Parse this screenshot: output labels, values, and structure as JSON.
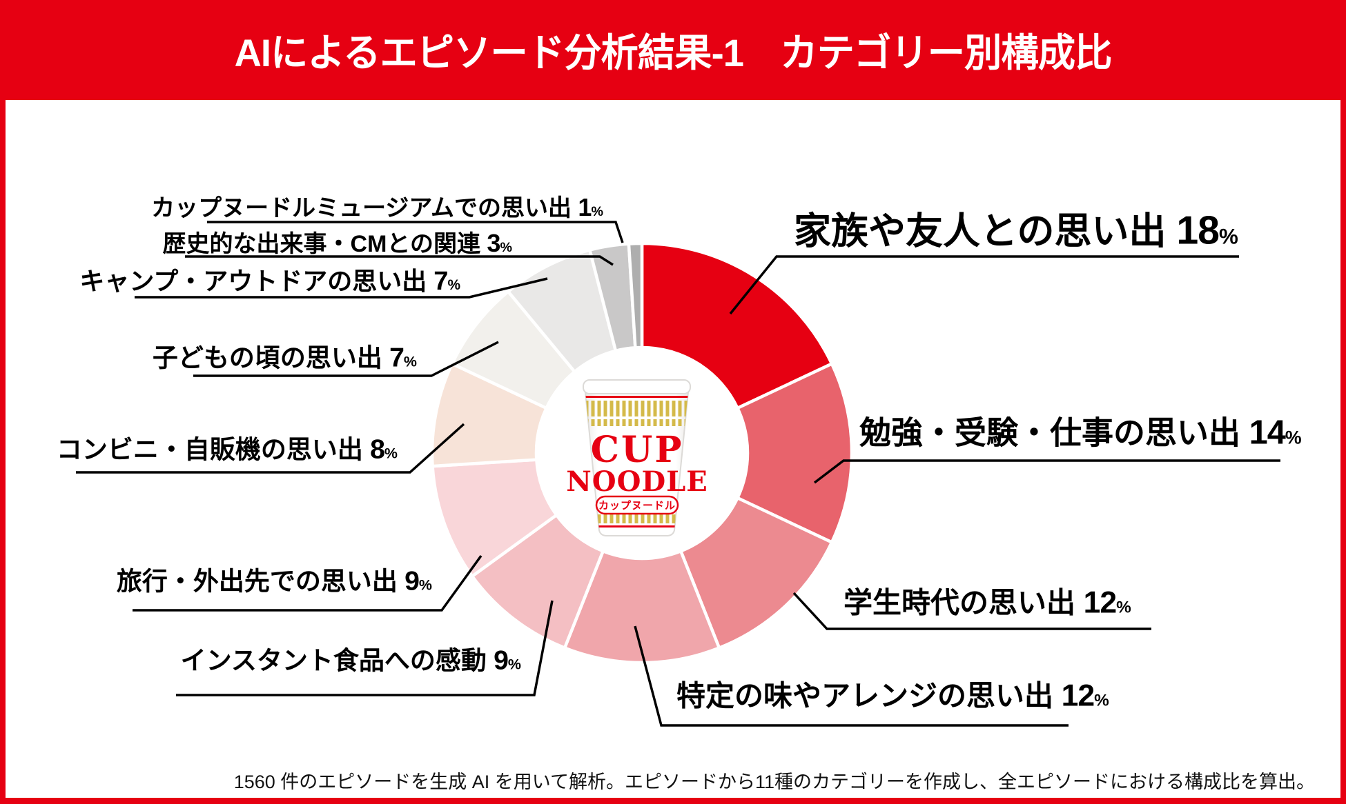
{
  "header": {
    "title": "AIによるエピソード分析結果-1　カテゴリー別構成比",
    "bg_color": "#E60012",
    "text_color": "#FFFFFF"
  },
  "chart_data": {
    "type": "pie",
    "subtype": "donut",
    "title": "カテゴリー別構成比",
    "unit": "%",
    "start_angle_deg": 0,
    "direction": "clockwise",
    "gap_color": "#FFFFFF",
    "slices": [
      {
        "label": "家族や友人との思い出",
        "value": 18,
        "color": "#E60012"
      },
      {
        "label": "勉強・受験・仕事の思い出",
        "value": 14,
        "color": "#E8636C"
      },
      {
        "label": "学生時代の思い出",
        "value": 12,
        "color": "#EC8A90"
      },
      {
        "label": "特定の味やアレンジの思い出",
        "value": 12,
        "color": "#F0A6AB"
      },
      {
        "label": "インスタント食品への感動",
        "value": 9,
        "color": "#F4BFC3"
      },
      {
        "label": "旅行・外出先での思い出",
        "value": 9,
        "color": "#F9D6D9"
      },
      {
        "label": "コンビニ・自販機の思い出",
        "value": 8,
        "color": "#F7E3D8"
      },
      {
        "label": "子どもの頃の思い出",
        "value": 7,
        "color": "#F2F0EC"
      },
      {
        "label": "キャンプ・アウトドアの思い出",
        "value": 7,
        "color": "#E9E8E7"
      },
      {
        "label": "歴史的な出来事・CMとの関連",
        "value": 3,
        "color": "#C9C8C8"
      },
      {
        "label": "カップヌードルミュージアムでの思い出",
        "value": 1,
        "color": "#AEAEAE"
      }
    ],
    "center_image": "cup-noodle-cup"
  },
  "cup": {
    "brand_en_1": "CUP",
    "brand_en_2": "NOODLE",
    "brand_jp": "カップヌードル",
    "red": "#E60012",
    "gold": "#D4BA4A"
  },
  "footer": {
    "note": "1560 件のエピソードを生成 AI を用いて解析。エピソードから11種のカテゴリーを作成し、全エピソードにおける構成比を算出。"
  }
}
